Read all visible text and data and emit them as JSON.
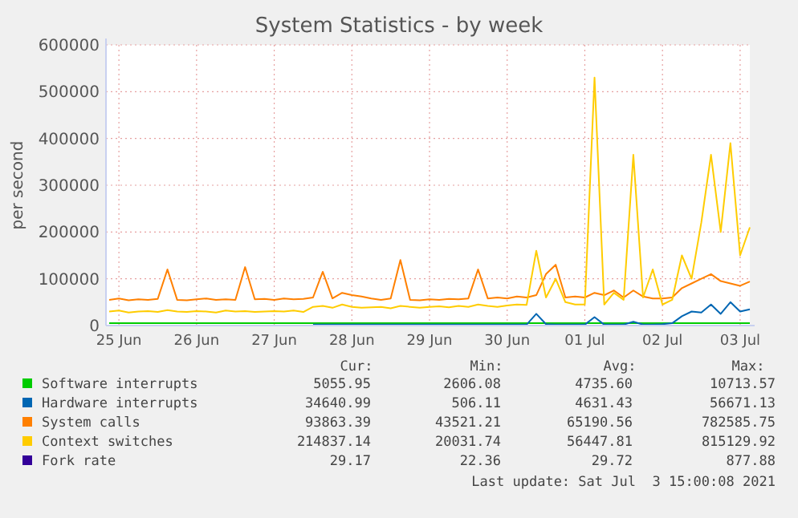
{
  "chart_data": {
    "type": "line",
    "title": "System Statistics - by week",
    "ylabel": "per second",
    "x": [
      "2021-06-25T09:00",
      "2021-06-25T12:00",
      "2021-06-25T15:00",
      "2021-06-25T18:00",
      "2021-06-25T21:00",
      "2021-06-26T00:00",
      "2021-06-26T03:00",
      "2021-06-26T06:00",
      "2021-06-26T09:00",
      "2021-06-26T12:00",
      "2021-06-26T15:00",
      "2021-06-26T18:00",
      "2021-06-26T21:00",
      "2021-06-27T00:00",
      "2021-06-27T03:00",
      "2021-06-27T06:00",
      "2021-06-27T09:00",
      "2021-06-27T12:00",
      "2021-06-27T15:00",
      "2021-06-27T18:00",
      "2021-06-27T21:00",
      "2021-06-28T00:00",
      "2021-06-28T03:00",
      "2021-06-28T06:00",
      "2021-06-28T09:00",
      "2021-06-28T12:00",
      "2021-06-28T15:00",
      "2021-06-28T18:00",
      "2021-06-28T21:00",
      "2021-06-29T00:00",
      "2021-06-29T03:00",
      "2021-06-29T06:00",
      "2021-06-29T09:00",
      "2021-06-29T12:00",
      "2021-06-29T15:00",
      "2021-06-29T18:00",
      "2021-06-29T21:00",
      "2021-06-30T00:00",
      "2021-06-30T03:00",
      "2021-06-30T06:00",
      "2021-06-30T09:00",
      "2021-06-30T12:00",
      "2021-06-30T15:00",
      "2021-06-30T18:00",
      "2021-06-30T21:00",
      "2021-07-01T00:00",
      "2021-07-01T03:00",
      "2021-07-01T06:00",
      "2021-07-01T09:00",
      "2021-07-01T12:00",
      "2021-07-01T15:00",
      "2021-07-01T18:00",
      "2021-07-01T21:00",
      "2021-07-02T00:00",
      "2021-07-02T03:00",
      "2021-07-02T06:00",
      "2021-07-02T09:00",
      "2021-07-02T12:00",
      "2021-07-02T15:00",
      "2021-07-02T18:00",
      "2021-07-02T21:00",
      "2021-07-03T00:00",
      "2021-07-03T03:00",
      "2021-07-03T06:00",
      "2021-07-03T09:00",
      "2021-07-03T12:00",
      "2021-07-03T15:00"
    ],
    "series": [
      {
        "name": "Software interrupts",
        "color": "#00cc00",
        "values": [
          5000,
          5000,
          5000,
          5000,
          5000,
          5000,
          5000,
          5000,
          5000,
          5000,
          5000,
          5000,
          5000,
          5000,
          5000,
          5000,
          5000,
          5000,
          5000,
          5000,
          5000,
          5000,
          5000,
          5000,
          5000,
          5000,
          5000,
          5000,
          5000,
          5000,
          5000,
          5000,
          5000,
          5000,
          5000,
          5000,
          5000,
          5000,
          5000,
          5000,
          5000,
          5000,
          5000,
          5000,
          5000,
          5000,
          5000,
          5000,
          5000,
          5000,
          5000,
          5000,
          5000,
          5000,
          5000,
          5000,
          5000,
          5000,
          5000,
          5000,
          5000,
          5000,
          5000,
          5000,
          5000,
          5000,
          5000
        ]
      },
      {
        "name": "Hardware interrupts",
        "color": "#0066b3",
        "values": [
          null,
          null,
          null,
          null,
          null,
          null,
          null,
          null,
          null,
          null,
          null,
          null,
          null,
          null,
          null,
          null,
          null,
          null,
          null,
          null,
          null,
          2000,
          2000,
          2000,
          2000,
          2000,
          2000,
          2000,
          2000,
          2000,
          2000,
          2000,
          2000,
          2000,
          2000,
          2000,
          2000,
          2000,
          2000,
          2000,
          2000,
          2000,
          2000,
          2000,
          25000,
          3000,
          2000,
          2000,
          2000,
          2000,
          18000,
          2000,
          2000,
          2000,
          8000,
          2000,
          2000,
          3000,
          5000,
          20000,
          30000,
          28000,
          45000,
          25000,
          50000,
          30000,
          34640
        ]
      },
      {
        "name": "System calls",
        "color": "#ff8000",
        "values": [
          55000,
          58000,
          54000,
          56000,
          55000,
          57000,
          120000,
          55000,
          54000,
          56000,
          58000,
          55000,
          56000,
          55000,
          125000,
          56000,
          57000,
          55000,
          58000,
          56000,
          57000,
          60000,
          115000,
          58000,
          70000,
          65000,
          62000,
          58000,
          55000,
          58000,
          140000,
          55000,
          54000,
          56000,
          55000,
          57000,
          56000,
          58000,
          120000,
          58000,
          60000,
          58000,
          62000,
          60000,
          65000,
          110000,
          130000,
          60000,
          62000,
          60000,
          70000,
          65000,
          75000,
          60000,
          75000,
          62000,
          58000,
          58000,
          60000,
          80000,
          90000,
          100000,
          110000,
          95000,
          90000,
          85000,
          94000
        ]
      },
      {
        "name": "Context switches",
        "color": "#ffcc00",
        "values": [
          30000,
          32000,
          28000,
          30000,
          31000,
          29000,
          33000,
          30000,
          29000,
          31000,
          30000,
          28000,
          32000,
          30000,
          31000,
          29000,
          30000,
          31000,
          30000,
          32000,
          29000,
          40000,
          42000,
          38000,
          45000,
          40000,
          38000,
          39000,
          40000,
          37000,
          42000,
          40000,
          38000,
          40000,
          41000,
          39000,
          42000,
          40000,
          45000,
          42000,
          40000,
          43000,
          45000,
          44000,
          160000,
          60000,
          100000,
          50000,
          45000,
          45000,
          530000,
          45000,
          70000,
          55000,
          365000,
          60000,
          120000,
          45000,
          55000,
          150000,
          100000,
          220000,
          365000,
          200000,
          390000,
          150000,
          210000
        ]
      },
      {
        "name": "Fork rate",
        "color": "#330099",
        "values": [
          null,
          null,
          null,
          null,
          null,
          null,
          null,
          null,
          null,
          null,
          null,
          null,
          null,
          null,
          null,
          null,
          null,
          null,
          null,
          null,
          null,
          null,
          null,
          null,
          null,
          null,
          null,
          null,
          null,
          null,
          null,
          null,
          null,
          null,
          null,
          null,
          null,
          null,
          null,
          null,
          null,
          null,
          null,
          null,
          null,
          null,
          null,
          null,
          null,
          null,
          null,
          null,
          null,
          null,
          null,
          null,
          null,
          null,
          null,
          null,
          null,
          null,
          null,
          null,
          null,
          null,
          null
        ]
      }
    ],
    "xlim": [
      "2021-06-25T08:00",
      "2021-07-03T15:00"
    ],
    "xticks": [
      {
        "value": "2021-06-25T12:00",
        "label": "25 Jun"
      },
      {
        "value": "2021-06-26T12:00",
        "label": "26 Jun"
      },
      {
        "value": "2021-06-27T12:00",
        "label": "27 Jun"
      },
      {
        "value": "2021-06-28T12:00",
        "label": "28 Jun"
      },
      {
        "value": "2021-06-29T12:00",
        "label": "29 Jun"
      },
      {
        "value": "2021-06-30T12:00",
        "label": "30 Jun"
      },
      {
        "value": "2021-07-01T12:00",
        "label": "01 Jul"
      },
      {
        "value": "2021-07-02T12:00",
        "label": "02 Jul"
      },
      {
        "value": "2021-07-03T12:00",
        "label": "03 Jul"
      }
    ],
    "ylim": [
      0,
      600000
    ],
    "yticks": [
      0,
      100000,
      200000,
      300000,
      400000,
      500000,
      600000
    ],
    "grid": true,
    "legend": "bottom",
    "annotations": [
      "Cur:",
      "Min:",
      "Avg:",
      "Max:",
      "5055.95",
      "2606.08",
      "4735.60",
      "10713.57",
      "34640.99",
      "506.11",
      "4631.43",
      "56671.13",
      "93863.39",
      "43521.21",
      "65190.56",
      "782585.75",
      "214837.14",
      "20031.74",
      "56447.81",
      "815129.92",
      "29.17",
      "22.36",
      "29.72",
      "877.88",
      "Last update: Sat Jul  3 15:00:08 2021"
    ]
  }
}
